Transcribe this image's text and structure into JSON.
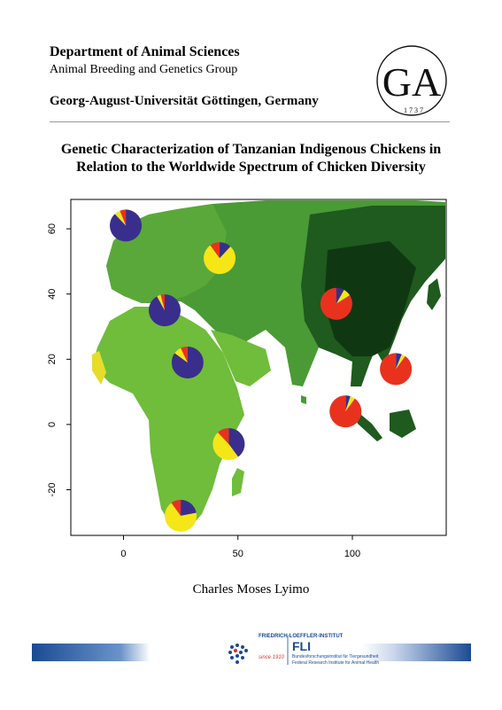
{
  "header": {
    "department": "Department of Animal Sciences",
    "group": "Animal Breeding and Genetics Group",
    "university": "Georg-August-Universität Göttingen, Germany",
    "logo_letters": "GA",
    "logo_year": "1737"
  },
  "title_lines": [
    "Genetic Characterization of Tanzanian Indigenous Chickens in",
    "Relation to the Worldwide Spectrum of Chicken Diversity"
  ],
  "chart_data": {
    "type": "pie",
    "description_type": "map-with-pie-markers",
    "x_ticks": [
      "0",
      "50",
      "100"
    ],
    "y_ticks": [
      "60",
      "40",
      "20",
      "0",
      "-20"
    ],
    "xlim": [
      -23,
      141
    ],
    "ylim": [
      -34,
      69
    ],
    "colors": {
      "purple": "#3a2e8c",
      "yellow": "#f5e617",
      "red": "#e8321e"
    },
    "pies": [
      {
        "lon": 1,
        "lat": 61,
        "values": [
          0.88,
          0.06,
          0.06
        ]
      },
      {
        "lon": 42,
        "lat": 51,
        "values": [
          0.12,
          0.78,
          0.1
        ]
      },
      {
        "lon": 18,
        "lat": 35,
        "values": [
          0.92,
          0.04,
          0.04
        ]
      },
      {
        "lon": 28,
        "lat": 19,
        "values": [
          0.85,
          0.08,
          0.07
        ]
      },
      {
        "lon": 93,
        "lat": 37,
        "values": [
          0.08,
          0.08,
          0.84
        ]
      },
      {
        "lon": 119,
        "lat": 17,
        "values": [
          0.06,
          0.04,
          0.9
        ]
      },
      {
        "lon": 97,
        "lat": 4,
        "values": [
          0.05,
          0.05,
          0.9
        ]
      },
      {
        "lon": 46,
        "lat": -6,
        "values": [
          0.4,
          0.48,
          0.12
        ]
      },
      {
        "lon": 25,
        "lat": -28,
        "values": [
          0.22,
          0.68,
          0.1
        ]
      }
    ]
  },
  "author": "Charles Moses Lyimo",
  "footer": {
    "institute_name": "FRIEDRICH-LOEFFLER-INSTITUT",
    "since": "since 1910",
    "abbr": "FLI",
    "line1": "Bundesforschungsinstitut für Tiergesundheit",
    "line2": "Federal Research Institute for Animal Health"
  }
}
